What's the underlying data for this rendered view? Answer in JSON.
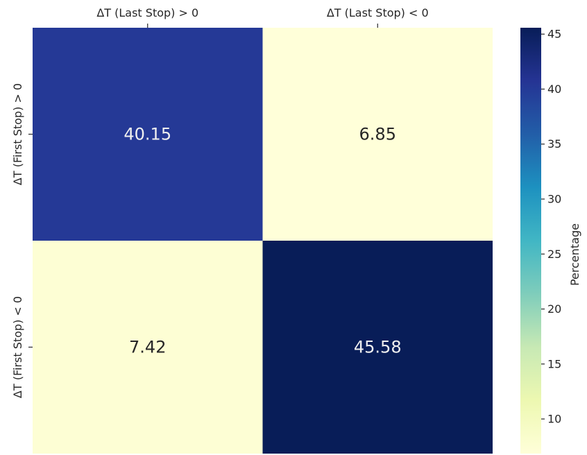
{
  "chart_data": {
    "type": "heatmap",
    "title": "",
    "x_categories": [
      "ΔT (Last Stop) > 0",
      "ΔT (Last Stop) < 0"
    ],
    "y_categories": [
      "ΔT (First Stop) > 0",
      "ΔT (First Stop) < 0"
    ],
    "values": [
      [
        40.15,
        6.85
      ],
      [
        7.42,
        45.58
      ]
    ],
    "cell_labels": [
      [
        "40.15",
        "6.85"
      ],
      [
        "7.42",
        "45.58"
      ]
    ],
    "x_axis_position": "top",
    "colormap": "YlGnBu",
    "colorbar": {
      "label": "Percentage",
      "range": [
        6.85,
        45.58
      ],
      "ticks": [
        10,
        15,
        20,
        25,
        30,
        35,
        40,
        45
      ],
      "tick_labels": [
        "10",
        "15",
        "20",
        "25",
        "30",
        "35",
        "40",
        "45"
      ]
    },
    "colors": {
      "text_on_dark": "#f0f0f0",
      "text_on_light": "#262626"
    }
  }
}
